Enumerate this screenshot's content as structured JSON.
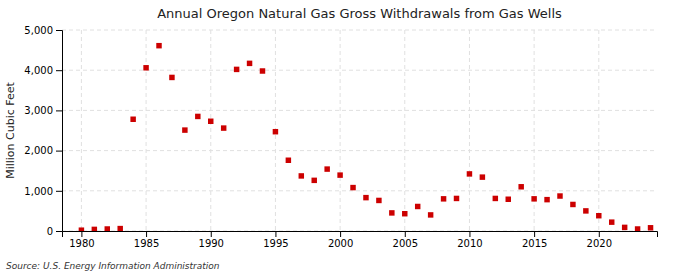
{
  "chart_data": {
    "type": "scatter",
    "title": "Annual Oregon Natural Gas Gross Withdrawals from Gas Wells",
    "ylabel": "Million Cubic Feet",
    "source": "Source: U.S. Energy Information Administration",
    "color": "#cc0000",
    "marker": "square",
    "grid": true,
    "xlim": [
      1978.5,
      2024.5
    ],
    "xticks": [
      1980,
      1985,
      1990,
      1995,
      2000,
      2005,
      2010,
      2015,
      2020
    ],
    "ylim": [
      0,
      5000
    ],
    "yticks": [
      0,
      {
        "value": 1000,
        "label": "1,000"
      },
      {
        "value": 2000,
        "label": "2,000"
      },
      {
        "value": 3000,
        "label": "3,000"
      },
      {
        "value": 4000,
        "label": "4,000"
      },
      {
        "value": 5000,
        "label": "5,000"
      }
    ],
    "x": [
      1980,
      1981,
      1982,
      1983,
      1984,
      1985,
      1986,
      1987,
      1988,
      1989,
      1990,
      1991,
      1992,
      1993,
      1994,
      1995,
      1996,
      1997,
      1998,
      1999,
      2000,
      2001,
      2002,
      2003,
      2004,
      2005,
      2006,
      2007,
      2008,
      2009,
      2010,
      2011,
      2012,
      2013,
      2014,
      2015,
      2016,
      2017,
      2018,
      2019,
      2020,
      2021,
      2022,
      2023,
      2024
    ],
    "values": [
      20,
      40,
      50,
      60,
      2780,
      4060,
      4610,
      3820,
      2510,
      2850,
      2730,
      2560,
      4020,
      4170,
      3980,
      2470,
      1760,
      1370,
      1260,
      1540,
      1390,
      1080,
      830,
      760,
      450,
      430,
      610,
      400,
      800,
      810,
      1420,
      1340,
      810,
      790,
      1100,
      800,
      780,
      870,
      660,
      500,
      380,
      220,
      90,
      50,
      80
    ]
  }
}
